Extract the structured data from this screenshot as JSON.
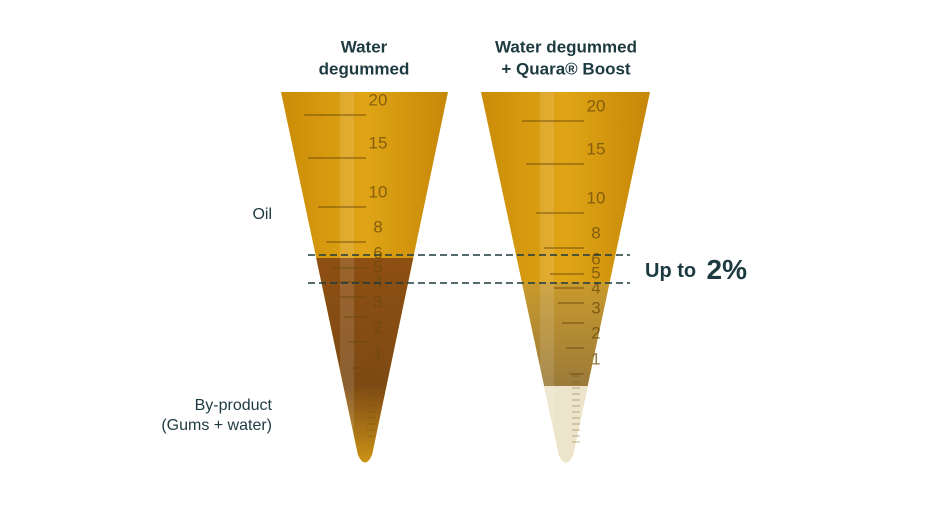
{
  "tubes": [
    {
      "title": [
        "Water",
        "degummed"
      ],
      "scale": [
        20,
        15,
        10,
        8,
        6,
        5,
        4,
        3,
        2,
        1
      ]
    },
    {
      "title": [
        "Water degummed",
        "+ Quara® Boost"
      ],
      "scale": [
        20,
        15,
        10,
        8,
        6,
        5,
        4,
        3,
        2,
        1
      ]
    }
  ],
  "labels": {
    "oil": "Oil",
    "byproduct": [
      "By-product",
      "(Gums + water)"
    ]
  },
  "callout": {
    "prefix": "Up to",
    "value": "2%"
  }
}
